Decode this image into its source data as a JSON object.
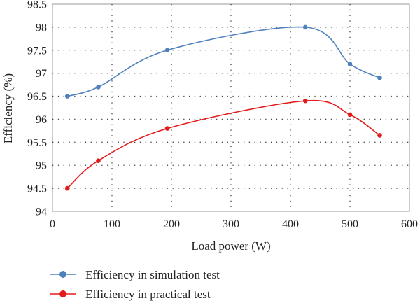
{
  "chart_data": {
    "type": "line",
    "title": "",
    "xlabel": "Load power (W)",
    "ylabel": "Efficiency (%)",
    "xlim": [
      0,
      600
    ],
    "ylim": [
      94,
      98.5
    ],
    "x_ticks": [
      "0",
      "100",
      "200",
      "300",
      "400",
      "500",
      "600"
    ],
    "y_ticks": [
      "94",
      "94.5",
      "95",
      "95.5",
      "96",
      "96.5",
      "97",
      "97.5",
      "98",
      "98.5"
    ],
    "grid": true,
    "legend_position": "bottom",
    "series": [
      {
        "name": "Efficiency in simulation test",
        "color": "#4f81bd",
        "x": [
          25,
          77,
          193,
          425,
          500,
          550
        ],
        "y": [
          96.5,
          96.7,
          97.5,
          98.0,
          97.2,
          96.9
        ]
      },
      {
        "name": "Efficiency in practical test",
        "color": "#e31b1b",
        "x": [
          25,
          77,
          193,
          425,
          500,
          550
        ],
        "y": [
          94.5,
          95.1,
          95.8,
          96.4,
          96.1,
          95.65
        ]
      }
    ]
  }
}
